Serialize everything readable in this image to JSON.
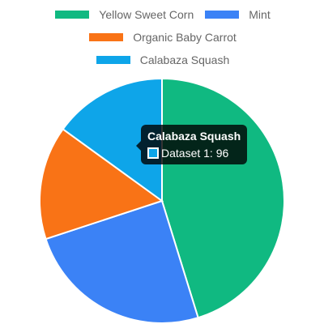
{
  "chart_data": {
    "type": "pie",
    "title": "",
    "legend_position": "top",
    "series": [
      {
        "name": "Dataset 1",
        "values": [
          289,
          158,
          96,
          96
        ]
      }
    ],
    "categories": [
      "Yellow Sweet Corn",
      "Mint",
      "Organic Baby Carrot",
      "Calabaza Squash"
    ],
    "colors": [
      "#10b981",
      "#3b82f6",
      "#f97316",
      "#0ea5e9"
    ]
  },
  "legend": {
    "items": [
      {
        "label": "Yellow Sweet Corn",
        "color": "#10b981"
      },
      {
        "label": "Mint",
        "color": "#3b82f6"
      },
      {
        "label": "Organic Baby Carrot",
        "color": "#f97316"
      },
      {
        "label": "Calabaza Squash",
        "color": "#0ea5e9"
      }
    ]
  },
  "tooltip": {
    "title": "Calabaza Squash",
    "body": "Dataset 1: 96",
    "color": "#0ea5e9"
  }
}
